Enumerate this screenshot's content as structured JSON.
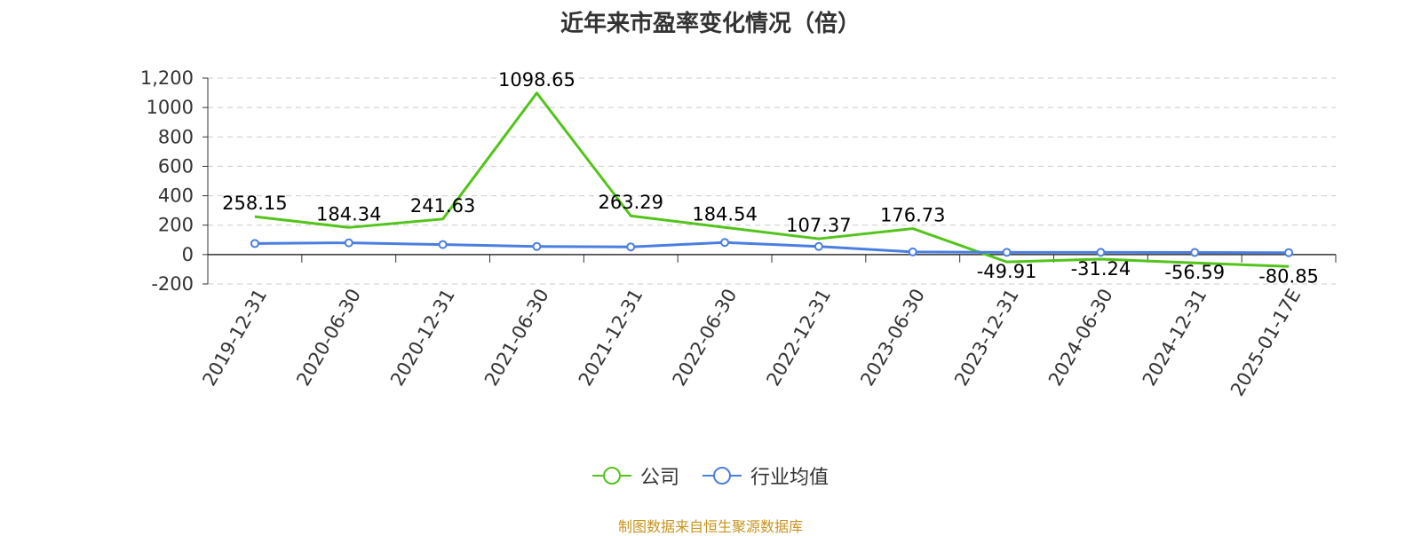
{
  "title": "近年来市盈率变化情况（倍）",
  "source": "制图数据来自恒生聚源数据库",
  "colors": {
    "company": "#52c41a",
    "industry": "#4a7ee0",
    "grid": "#cccccc",
    "axis": "#333333"
  },
  "chart_data": {
    "type": "line",
    "title": "近年来市盈率变化情况（倍）",
    "categories": [
      "2019-12-31",
      "2020-06-30",
      "2020-12-31",
      "2021-06-30",
      "2021-12-31",
      "2022-06-30",
      "2022-12-31",
      "2023-06-30",
      "2023-12-31",
      "2024-06-30",
      "2024-12-31",
      "2025-01-17E"
    ],
    "ylim": [
      -200,
      1200
    ],
    "yticks": [
      -200,
      0,
      200,
      400,
      600,
      800,
      1000,
      1200
    ],
    "ytick_labels": [
      "-200",
      "0",
      "200",
      "400",
      "600",
      "800",
      "1000",
      "1,200"
    ],
    "grid": true,
    "legend_position": "bottom",
    "series": [
      {
        "name": "公司",
        "color": "#52c41a",
        "show_labels": true,
        "values": [
          258.15,
          184.34,
          241.63,
          1098.65,
          263.29,
          184.54,
          107.37,
          176.73,
          -49.91,
          -31.24,
          -56.59,
          -80.85
        ]
      },
      {
        "name": "行业均值",
        "color": "#4a7ee0",
        "show_labels": false,
        "values": [
          75,
          80,
          68,
          55,
          52,
          82,
          55,
          18,
          15,
          15,
          14,
          13
        ]
      }
    ]
  }
}
